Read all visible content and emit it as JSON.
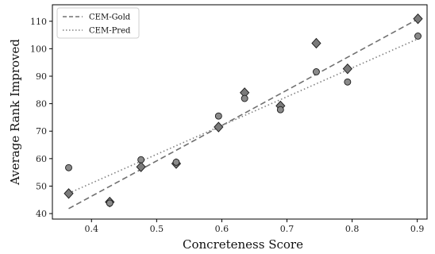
{
  "chart_data": {
    "type": "scatter",
    "xlabel": "Concreteness Score",
    "ylabel": "Average Rank Improved",
    "xlim": [
      0.34,
      0.915
    ],
    "ylim": [
      38,
      116
    ],
    "xticks": [
      "0.4",
      "0.5",
      "0.6",
      "0.7",
      "0.8",
      "0.9"
    ],
    "xtick_values": [
      0.4,
      0.5,
      0.6,
      0.7,
      0.8,
      0.9
    ],
    "yticks": [
      "40",
      "50",
      "60",
      "70",
      "80",
      "90",
      "100",
      "110"
    ],
    "ytick_values": [
      40,
      50,
      60,
      70,
      80,
      90,
      100,
      110
    ],
    "grid": false,
    "legend_position": "top-left",
    "series": [
      {
        "name": "CEM-Gold",
        "marker": "diamond",
        "line_style": "dashed",
        "color": "#707070",
        "points": [
          {
            "x": 0.365,
            "y": 47.3
          },
          {
            "x": 0.428,
            "y": 44.2
          },
          {
            "x": 0.476,
            "y": 57.0
          },
          {
            "x": 0.53,
            "y": 58.2
          },
          {
            "x": 0.595,
            "y": 71.5
          },
          {
            "x": 0.635,
            "y": 84.0
          },
          {
            "x": 0.69,
            "y": 79.2
          },
          {
            "x": 0.745,
            "y": 102.0
          },
          {
            "x": 0.793,
            "y": 92.7
          },
          {
            "x": 0.901,
            "y": 110.9
          }
        ],
        "fit_line": {
          "x": [
            0.365,
            0.901
          ],
          "y": [
            41.8,
            110.8
          ]
        }
      },
      {
        "name": "CEM-Pred",
        "marker": "circle",
        "line_style": "dotted",
        "color": "#808080",
        "points": [
          {
            "x": 0.365,
            "y": 56.7
          },
          {
            "x": 0.428,
            "y": 43.8
          },
          {
            "x": 0.476,
            "y": 59.6
          },
          {
            "x": 0.53,
            "y": 58.7
          },
          {
            "x": 0.595,
            "y": 75.5
          },
          {
            "x": 0.635,
            "y": 81.9
          },
          {
            "x": 0.69,
            "y": 77.8
          },
          {
            "x": 0.745,
            "y": 91.6
          },
          {
            "x": 0.793,
            "y": 87.9
          },
          {
            "x": 0.901,
            "y": 104.6
          }
        ],
        "fit_line": {
          "x": [
            0.365,
            0.901
          ],
          "y": [
            47.4,
            103.6
          ]
        }
      }
    ]
  }
}
